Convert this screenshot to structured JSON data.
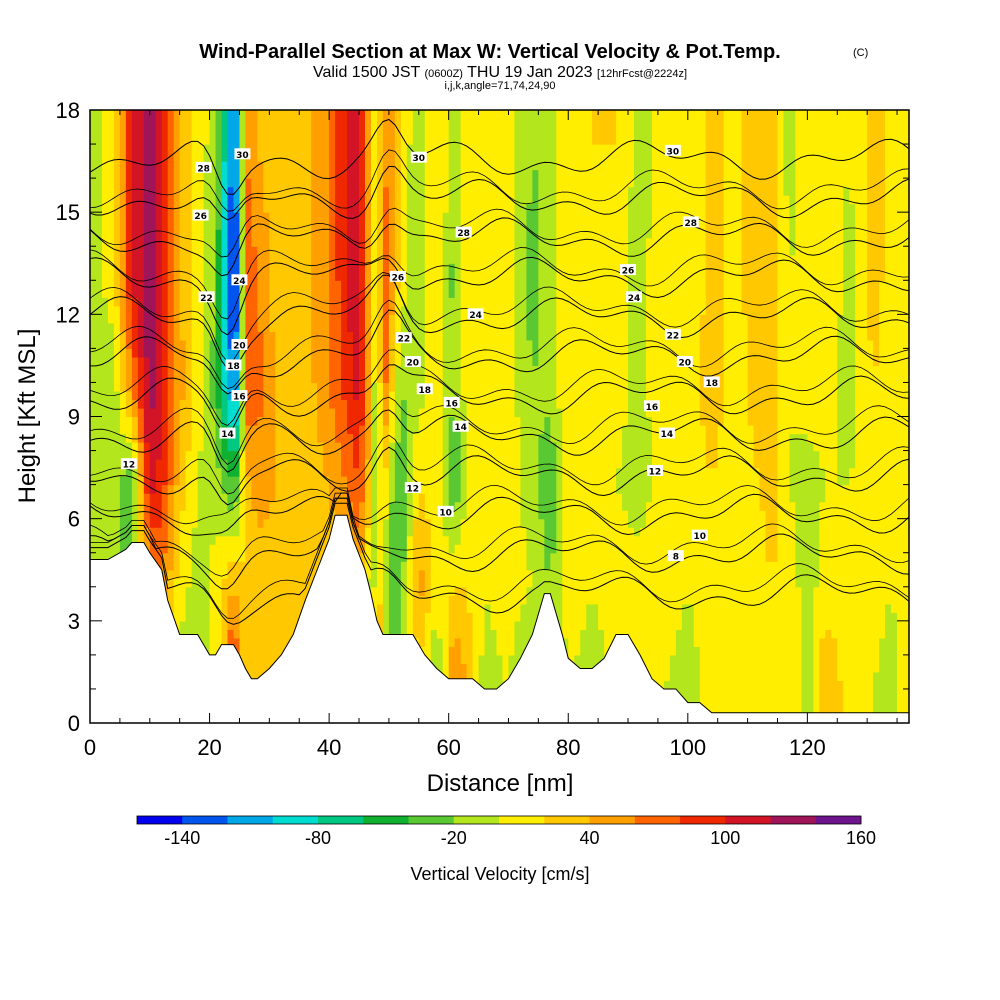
{
  "chart_data": {
    "type": "heatmap",
    "title": "Wind-Parallel Section at Max W: Vertical Velocity & Pot.Temp.",
    "title_suffix": "(C)",
    "subtitle_valid": "Valid 1500 JST",
    "subtitle_utc": "(0600Z)",
    "subtitle_date": "THU 19 Jan 2023",
    "subtitle_fcst": "[12hrFcst@2224z]",
    "subtitle_grid": "i,j,k,angle=71,74,24,90",
    "xlabel": "Distance [nm]",
    "ylabel": "Height [Kft MSL]",
    "xlim": [
      0,
      137
    ],
    "ylim": [
      0,
      18
    ],
    "x_ticks": [
      "0",
      "20",
      "40",
      "60",
      "80",
      "100",
      "120"
    ],
    "y_ticks": [
      "0",
      "3",
      "6",
      "9",
      "12",
      "15",
      "18"
    ],
    "colorbar_label": "Vertical Velocity [cm/s]",
    "colorbar_tick_labels": [
      "-140",
      "-80",
      "-20",
      "40",
      "100",
      "160"
    ],
    "colorbar_colors": [
      "#0000ee",
      "#0055ee",
      "#00a8e8",
      "#00dcd0",
      "#00c880",
      "#10b030",
      "#5ac832",
      "#b4e61e",
      "#ffee00",
      "#ffc800",
      "#ffa000",
      "#ff6400",
      "#f02800",
      "#d21426",
      "#a0145a",
      "#6e148c"
    ],
    "columns_x": [
      0,
      4,
      7,
      10,
      12,
      15,
      18,
      21,
      23,
      24,
      25,
      26,
      28,
      31,
      35,
      40,
      43,
      45,
      47,
      48,
      49,
      50,
      52,
      55,
      58,
      61,
      63,
      66,
      70,
      74,
      77,
      80,
      84,
      88,
      92,
      96,
      100,
      104,
      108,
      112,
      114,
      117,
      120,
      123,
      127,
      131,
      134,
      137
    ],
    "velocity_profiles": [
      [
        -10,
        -10,
        -10,
        -10,
        -10,
        -10
      ],
      [
        -60,
        -20,
        -10,
        -10,
        10,
        10
      ],
      [
        -70,
        -20,
        -40,
        60,
        100,
        100
      ],
      [
        0,
        40,
        110,
        130,
        130,
        130
      ],
      [
        20,
        60,
        90,
        110,
        110,
        100
      ],
      [
        -10,
        10,
        30,
        50,
        40,
        30
      ],
      [
        -20,
        -10,
        0,
        10,
        10,
        10
      ],
      [
        10,
        10,
        -10,
        -30,
        -20,
        -10
      ],
      [
        60,
        30,
        -30,
        -100,
        -120,
        -100
      ],
      [
        140,
        40,
        -40,
        -130,
        -140,
        -130
      ],
      [
        30,
        30,
        -20,
        -100,
        -110,
        -100
      ],
      [
        40,
        20,
        30,
        80,
        80,
        60
      ],
      [
        40,
        30,
        50,
        70,
        60,
        40
      ],
      [
        20,
        30,
        40,
        40,
        30,
        30
      ],
      [
        20,
        20,
        20,
        20,
        20,
        20
      ],
      [
        30,
        30,
        40,
        60,
        60,
        60
      ],
      [
        40,
        40,
        60,
        90,
        100,
        100
      ],
      [
        20,
        40,
        80,
        110,
        120,
        110
      ],
      [
        -20,
        -20,
        20,
        40,
        40,
        30
      ],
      [
        100,
        20,
        -30,
        -40,
        -30,
        -20
      ],
      [
        40,
        0,
        30,
        80,
        80,
        60
      ],
      [
        -20,
        -40,
        -10,
        40,
        60,
        50
      ],
      [
        -20,
        -30,
        -40,
        -20,
        10,
        10
      ],
      [
        10,
        50,
        20,
        -10,
        -20,
        -10
      ],
      [
        -30,
        10,
        10,
        20,
        20,
        20
      ],
      [
        70,
        20,
        -40,
        -20,
        -30,
        -10
      ],
      [
        40,
        20,
        0,
        10,
        10,
        10
      ],
      [
        -10,
        0,
        10,
        20,
        20,
        20
      ],
      [
        0,
        10,
        10,
        10,
        10,
        10
      ],
      [
        -40,
        0,
        -10,
        -20,
        -30,
        -20
      ],
      [
        -30,
        -20,
        -40,
        -10,
        -10,
        -10
      ],
      [
        0,
        10,
        10,
        20,
        10,
        10
      ],
      [
        -10,
        0,
        10,
        10,
        20,
        20
      ],
      [
        0,
        10,
        0,
        10,
        10,
        20
      ],
      [
        20,
        10,
        -10,
        -10,
        -10,
        -10
      ],
      [
        0,
        10,
        10,
        20,
        20,
        10
      ],
      [
        -10,
        0,
        10,
        10,
        0,
        0
      ],
      [
        10,
        10,
        20,
        30,
        30,
        30
      ],
      [
        0,
        0,
        10,
        10,
        10,
        10
      ],
      [
        10,
        10,
        20,
        30,
        40,
        40
      ],
      [
        10,
        20,
        30,
        30,
        30,
        30
      ],
      [
        20,
        10,
        0,
        0,
        0,
        -10
      ],
      [
        -10,
        -10,
        -10,
        10,
        10,
        10
      ],
      [
        40,
        10,
        0,
        10,
        20,
        20
      ],
      [
        10,
        10,
        0,
        -10,
        -10,
        0
      ],
      [
        0,
        10,
        10,
        20,
        30,
        30
      ],
      [
        -10,
        0,
        10,
        10,
        10,
        10
      ],
      [
        20,
        10,
        0,
        0,
        0,
        0
      ]
    ],
    "profile_heights": [
      1,
      4,
      7,
      10,
      13,
      17
    ],
    "terrain": {
      "x": [
        0,
        3,
        6,
        7,
        9,
        10,
        12,
        13,
        15,
        16,
        18,
        19,
        20,
        21,
        22,
        23,
        24,
        25,
        26,
        27,
        28,
        30,
        32,
        34,
        36,
        38,
        40,
        41,
        43,
        44,
        46,
        47,
        48,
        49,
        50,
        51,
        52,
        54,
        56,
        58,
        60,
        62,
        64,
        66,
        68,
        70,
        72,
        74,
        76,
        77,
        79,
        80,
        82,
        84,
        86,
        88,
        90,
        92,
        94,
        96,
        98,
        100,
        102,
        104,
        106,
        108,
        110,
        112,
        114,
        116,
        118,
        120,
        122,
        124,
        126,
        128,
        130,
        132,
        134,
        137
      ],
      "h": [
        4.8,
        4.8,
        5.1,
        5.3,
        5.3,
        5.0,
        4.5,
        3.6,
        2.6,
        2.6,
        2.6,
        2.3,
        2.0,
        2.0,
        2.3,
        2.3,
        2.3,
        2.0,
        1.6,
        1.3,
        1.3,
        1.6,
        2.0,
        2.6,
        3.6,
        4.5,
        5.4,
        6.1,
        6.1,
        5.4,
        4.5,
        3.8,
        3.0,
        2.6,
        2.6,
        2.6,
        2.6,
        2.6,
        2.0,
        1.6,
        1.3,
        1.3,
        1.3,
        1.0,
        1.0,
        1.3,
        1.9,
        2.6,
        3.8,
        3.8,
        2.6,
        1.9,
        1.6,
        1.6,
        1.9,
        2.6,
        2.6,
        2.0,
        1.3,
        1.0,
        1.0,
        0.6,
        0.6,
        0.3,
        0.3,
        0.3,
        0.3,
        0.3,
        0.3,
        0.3,
        0.3,
        0.3,
        0.3,
        0.3,
        0.3,
        0.3,
        0.3,
        0.3,
        0.3,
        0.3
      ]
    },
    "theta_levels": [
      8,
      10,
      12,
      14,
      16,
      18,
      20,
      22,
      24,
      26,
      28,
      30
    ],
    "contour_labels": [
      {
        "text": "30",
        "x": 25.5,
        "y": 16.7
      },
      {
        "text": "28",
        "x": 19,
        "y": 16.3
      },
      {
        "text": "26",
        "x": 18.5,
        "y": 14.9
      },
      {
        "text": "24",
        "x": 25,
        "y": 13.0
      },
      {
        "text": "22",
        "x": 19.5,
        "y": 12.5
      },
      {
        "text": "20",
        "x": 25,
        "y": 11.1
      },
      {
        "text": "18",
        "x": 24,
        "y": 10.5
      },
      {
        "text": "16",
        "x": 25,
        "y": 9.6
      },
      {
        "text": "14",
        "x": 23,
        "y": 8.5
      },
      {
        "text": "12",
        "x": 6.5,
        "y": 7.6
      },
      {
        "text": "30",
        "x": 55,
        "y": 16.6
      },
      {
        "text": "28",
        "x": 62.5,
        "y": 14.4
      },
      {
        "text": "26",
        "x": 51.5,
        "y": 13.1
      },
      {
        "text": "24",
        "x": 64.5,
        "y": 12.0
      },
      {
        "text": "22",
        "x": 52.5,
        "y": 11.3
      },
      {
        "text": "20",
        "x": 54,
        "y": 10.6
      },
      {
        "text": "18",
        "x": 56,
        "y": 9.8
      },
      {
        "text": "16",
        "x": 60.5,
        "y": 9.4
      },
      {
        "text": "14",
        "x": 62,
        "y": 8.7
      },
      {
        "text": "12",
        "x": 54,
        "y": 6.9
      },
      {
        "text": "10",
        "x": 59.5,
        "y": 6.2
      },
      {
        "text": "30",
        "x": 97.5,
        "y": 16.8
      },
      {
        "text": "28",
        "x": 100.5,
        "y": 14.7
      },
      {
        "text": "26",
        "x": 90,
        "y": 13.3
      },
      {
        "text": "24",
        "x": 91,
        "y": 12.5
      },
      {
        "text": "22",
        "x": 97.5,
        "y": 11.4
      },
      {
        "text": "20",
        "x": 99.5,
        "y": 10.6
      },
      {
        "text": "18",
        "x": 104,
        "y": 10.0
      },
      {
        "text": "16",
        "x": 94,
        "y": 9.3
      },
      {
        "text": "14",
        "x": 96.5,
        "y": 8.5
      },
      {
        "text": "12",
        "x": 94.5,
        "y": 7.4
      },
      {
        "text": "10",
        "x": 102,
        "y": 5.5
      },
      {
        "text": "8",
        "x": 98,
        "y": 4.9
      }
    ]
  }
}
